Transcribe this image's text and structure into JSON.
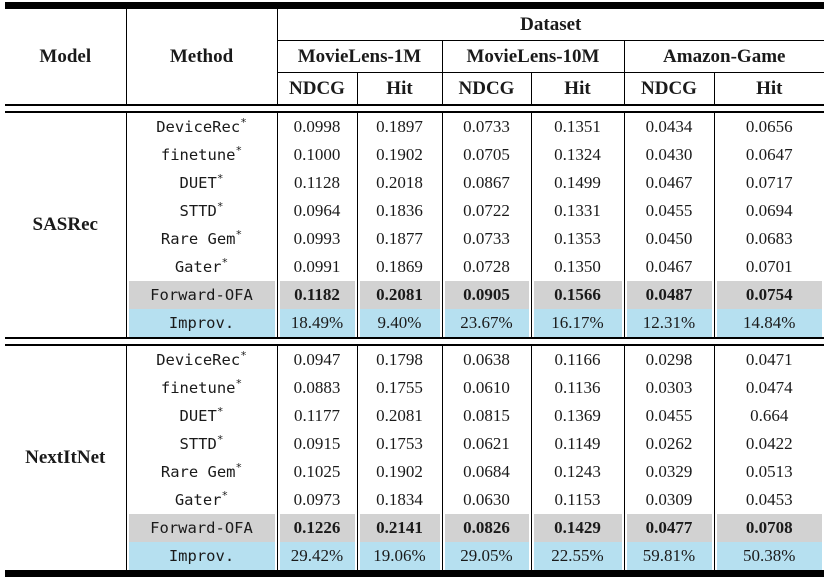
{
  "table": {
    "header": {
      "model": "Model",
      "method": "Method",
      "dataset": "Dataset",
      "groups": [
        "MovieLens-1M",
        "MovieLens-10M",
        "Amazon-Game"
      ],
      "metrics": [
        "NDCG",
        "Hit",
        "NDCG",
        "Hit",
        "NDCG",
        "Hit"
      ]
    },
    "colors": {
      "ours_row_bg": "#d2d2d2",
      "improv_row_bg": "#b6e0f0",
      "rule_color": "#000000"
    },
    "sections": [
      {
        "model": "SASRec",
        "rows": [
          {
            "method": "DeviceRec",
            "mark": "*",
            "style": "normal",
            "values": [
              "0.0998",
              "0.1897",
              "0.0733",
              "0.1351",
              "0.0434",
              "0.0656"
            ]
          },
          {
            "method": "finetune",
            "mark": "*",
            "style": "normal",
            "values": [
              "0.1000",
              "0.1902",
              "0.0705",
              "0.1324",
              "0.0430",
              "0.0647"
            ]
          },
          {
            "method": "DUET",
            "mark": "*",
            "style": "normal",
            "values": [
              "0.1128",
              "0.2018",
              "0.0867",
              "0.1499",
              "0.0467",
              "0.0717"
            ]
          },
          {
            "method": "STTD",
            "mark": "*",
            "style": "normal",
            "values": [
              "0.0964",
              "0.1836",
              "0.0722",
              "0.1331",
              "0.0455",
              "0.0694"
            ]
          },
          {
            "method": "Rare Gem",
            "mark": "*",
            "style": "normal",
            "values": [
              "0.0993",
              "0.1877",
              "0.0733",
              "0.1353",
              "0.0450",
              "0.0683"
            ]
          },
          {
            "method": "Gater",
            "mark": "*",
            "style": "normal",
            "values": [
              "0.0991",
              "0.1869",
              "0.0728",
              "0.1350",
              "0.0467",
              "0.0701"
            ]
          },
          {
            "method": "Forward-OFA",
            "mark": "",
            "style": "ours",
            "values": [
              "0.1182",
              "0.2081",
              "0.0905",
              "0.1566",
              "0.0487",
              "0.0754"
            ]
          },
          {
            "method": "Improv.",
            "mark": "",
            "style": "improv",
            "values": [
              "18.49%",
              "9.40%",
              "23.67%",
              "16.17%",
              "12.31%",
              "14.84%"
            ]
          }
        ]
      },
      {
        "model": "NextItNet",
        "rows": [
          {
            "method": "DeviceRec",
            "mark": "*",
            "style": "normal",
            "values": [
              "0.0947",
              "0.1798",
              "0.0638",
              "0.1166",
              "0.0298",
              "0.0471"
            ]
          },
          {
            "method": "finetune",
            "mark": "*",
            "style": "normal",
            "values": [
              "0.0883",
              "0.1755",
              "0.0610",
              "0.1136",
              "0.0303",
              "0.0474"
            ]
          },
          {
            "method": "DUET",
            "mark": "*",
            "style": "normal",
            "values": [
              "0.1177",
              "0.2081",
              "0.0815",
              "0.1369",
              "0.0455",
              "0.664"
            ]
          },
          {
            "method": "STTD",
            "mark": "*",
            "style": "normal",
            "values": [
              "0.0915",
              "0.1753",
              "0.0621",
              "0.1149",
              "0.0262",
              "0.0422"
            ]
          },
          {
            "method": "Rare Gem",
            "mark": "*",
            "style": "normal",
            "values": [
              "0.1025",
              "0.1902",
              "0.0684",
              "0.1243",
              "0.0329",
              "0.0513"
            ]
          },
          {
            "method": "Gater",
            "mark": "*",
            "style": "normal",
            "values": [
              "0.0973",
              "0.1834",
              "0.0630",
              "0.1153",
              "0.0309",
              "0.0453"
            ]
          },
          {
            "method": "Forward-OFA",
            "mark": "",
            "style": "ours",
            "values": [
              "0.1226",
              "0.2141",
              "0.0826",
              "0.1429",
              "0.0477",
              "0.0708"
            ]
          },
          {
            "method": "Improv.",
            "mark": "",
            "style": "improv",
            "values": [
              "29.42%",
              "19.06%",
              "29.05%",
              "22.55%",
              "59.81%",
              "50.38%"
            ]
          }
        ]
      }
    ]
  }
}
